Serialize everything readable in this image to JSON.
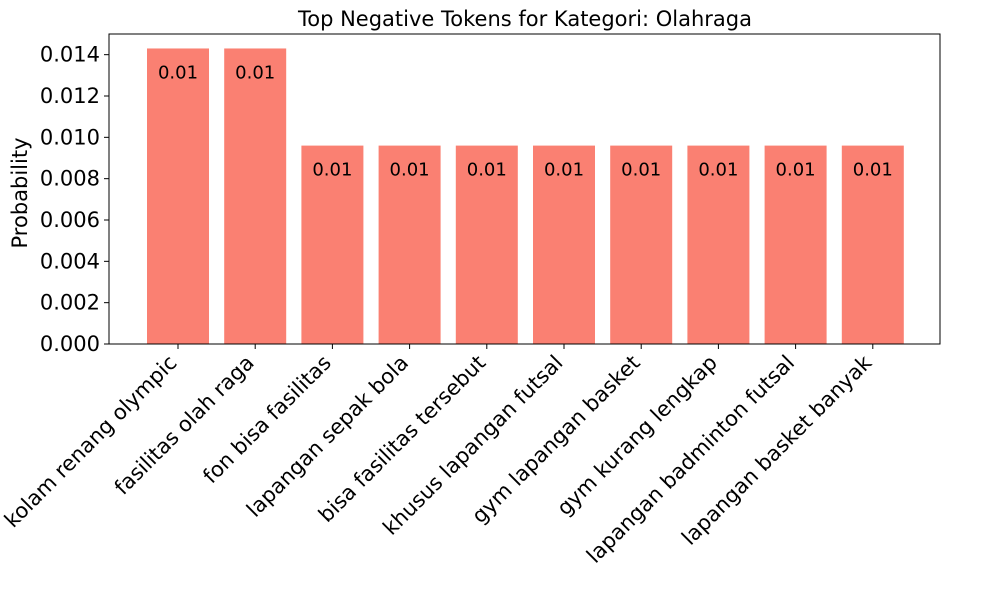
{
  "chart_data": {
    "type": "bar",
    "title": "Top Negative Tokens for Kategori: Olahraga",
    "xlabel": "",
    "ylabel": "Probability",
    "categories": [
      "kolam renang olympic",
      "fasilitas olah raga",
      "fon bisa fasilitas",
      "lapangan sepak bola",
      "bisa fasilitas tersebut",
      "khusus lapangan futsal",
      "gym lapangan basket",
      "gym kurang lengkap",
      "lapangan badminton futsal",
      "lapangan basket banyak"
    ],
    "values": [
      0.0143,
      0.0143,
      0.0096,
      0.0096,
      0.0096,
      0.0096,
      0.0096,
      0.0096,
      0.0096,
      0.0096
    ],
    "data_labels": [
      "0.01",
      "0.01",
      "0.01",
      "0.01",
      "0.01",
      "0.01",
      "0.01",
      "0.01",
      "0.01",
      "0.01"
    ],
    "yticks": [
      "0.000",
      "0.002",
      "0.004",
      "0.006",
      "0.008",
      "0.010",
      "0.012",
      "0.014"
    ],
    "ylim": [
      0,
      0.015
    ],
    "grid": false,
    "bar_color": "#fa8072"
  }
}
